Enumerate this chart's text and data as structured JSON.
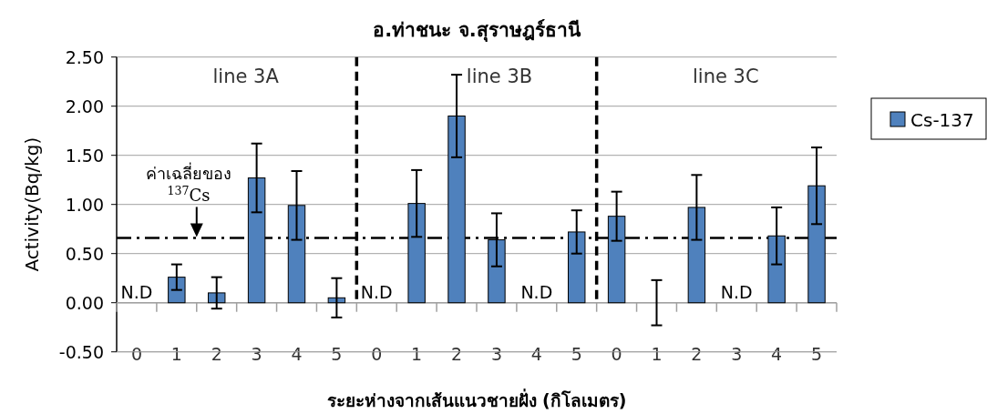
{
  "chart_data": {
    "type": "bar",
    "title": "อ.ท่าชนะ จ.สุราษฎร์ธานี",
    "xlabel": "ระยะห่างจากเส้นแนวชายฝั่ง (กิโลเมตร)",
    "ylabel": "Activity(Bq/kg)",
    "categories": [
      "0",
      "1",
      "2",
      "3",
      "4",
      "5",
      "0",
      "1",
      "2",
      "3",
      "4",
      "5",
      "0",
      "1",
      "2",
      "3",
      "4",
      "5"
    ],
    "series": [
      {
        "name": "Cs-137",
        "color": "#4f81bd",
        "values": [
          0,
          0.26,
          0.1,
          1.27,
          0.99,
          0.05,
          0,
          1.01,
          1.9,
          0.64,
          0,
          0.72,
          0.88,
          0,
          0.97,
          0,
          0.68,
          1.19
        ],
        "errors": [
          null,
          0.13,
          0.16,
          0.35,
          0.35,
          0.2,
          null,
          0.34,
          0.42,
          0.27,
          null,
          0.22,
          0.25,
          0.23,
          0.33,
          null,
          0.29,
          0.39
        ],
        "value_labels": [
          "N.D",
          null,
          null,
          null,
          null,
          null,
          "N.D",
          null,
          null,
          null,
          "N.D",
          null,
          null,
          null,
          null,
          "N.D",
          null,
          null
        ]
      }
    ],
    "ylim": [
      -0.5,
      2.5
    ],
    "yticks": [
      {
        "value": -0.5,
        "label": "-0.50"
      },
      {
        "value": 0,
        "label": "0.00"
      },
      {
        "value": 0.5,
        "label": "0.50"
      },
      {
        "value": 1,
        "label": "1.00"
      },
      {
        "value": 1.5,
        "label": "1.50"
      },
      {
        "value": 2,
        "label": "2.00"
      },
      {
        "value": 2.5,
        "label": "2.50"
      }
    ],
    "grid": "y",
    "legend": "right",
    "ref_lines": [
      {
        "axis": "y",
        "value": 0.66,
        "label": "ค่าเฉลี่ยของ $^{137}$Cs",
        "line_style": "dashdot",
        "color": "#000000"
      }
    ],
    "annotations": [
      "line 3A",
      "line 3B",
      "line 3C"
    ]
  }
}
